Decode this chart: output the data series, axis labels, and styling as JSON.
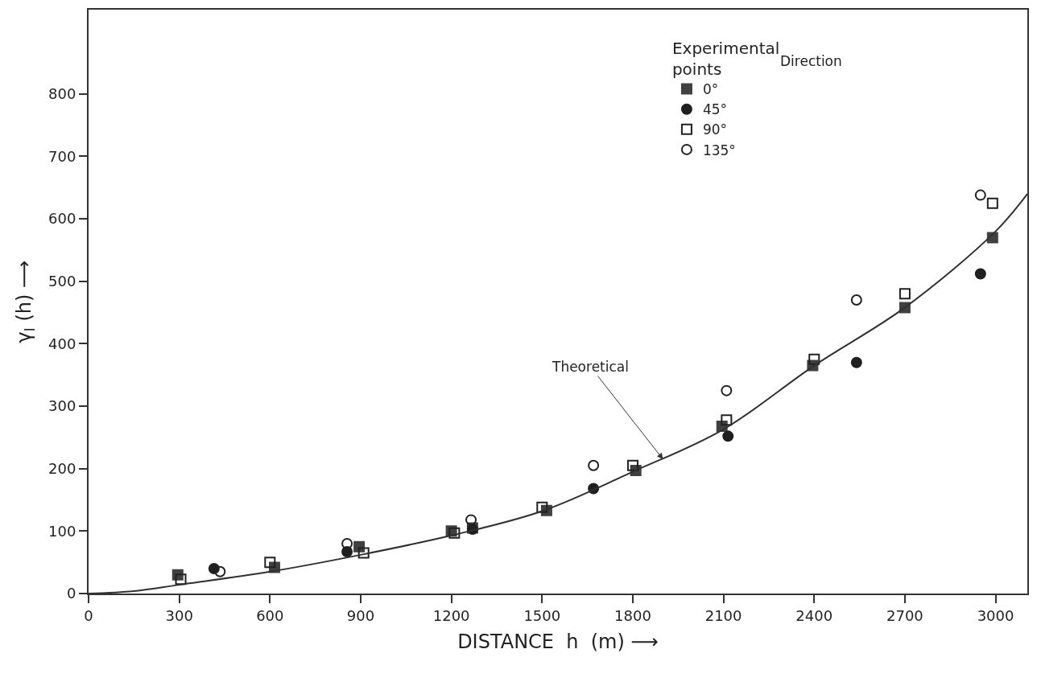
{
  "chart_data": {
    "type": "scatter",
    "xlabel": "DISTANCE  h  (m) ⟶",
    "ylabel": "γ$_{I}$ (h) ⟶",
    "legend_title": "Experimental points",
    "legend": "top right",
    "xlim": [
      0,
      3105
    ],
    "ylim": [
      0,
      935
    ],
    "xticks": [
      0,
      300,
      600,
      900,
      1200,
      1500,
      1800,
      2100,
      2400,
      2700,
      3000
    ],
    "yticks": [
      0,
      100,
      200,
      300,
      400,
      500,
      600,
      700,
      800
    ],
    "annotations": [
      {
        "text": "Theoretical",
        "x": 1900,
        "y": 215
      },
      "Direction"
    ],
    "series": [
      {
        "name": "0°",
        "marker": "square",
        "color": "#404040",
        "x": [
          295,
          615,
          895,
          1200,
          1270,
          1515,
          1810,
          2095,
          2395,
          2700,
          2990
        ],
        "values": [
          30,
          42,
          75,
          100,
          105,
          133,
          197,
          268,
          365,
          458,
          570
        ]
      },
      {
        "name": "45°",
        "marker": "circle",
        "color": "#202020",
        "x": [
          415,
          855,
          1270,
          1670,
          2115,
          2540,
          2950
        ],
        "values": [
          40,
          67,
          103,
          168,
          252,
          370,
          512
        ]
      },
      {
        "name": "90°",
        "marker": "square-open",
        "color": "#202020",
        "x": [
          305,
          600,
          910,
          1210,
          1500,
          1800,
          2110,
          2400,
          2700,
          2990
        ],
        "values": [
          23,
          50,
          65,
          97,
          138,
          205,
          278,
          375,
          480,
          625
        ]
      },
      {
        "name": "135°",
        "marker": "circle-open",
        "color": "#202020",
        "x": [
          435,
          855,
          1265,
          1670,
          2110,
          2540,
          2950
        ],
        "values": [
          35,
          80,
          118,
          205,
          325,
          470,
          638
        ]
      },
      {
        "type": "line",
        "color": "#303030",
        "line_style": "solid",
        "x": [
          0,
          150,
          300,
          600,
          900,
          1200,
          1500,
          1800,
          2100,
          2400,
          2700,
          3000,
          3105
        ],
        "values": [
          0,
          4,
          14,
          35,
          62,
          93,
          132,
          195,
          263,
          365,
          458,
          580,
          640
        ]
      }
    ]
  }
}
